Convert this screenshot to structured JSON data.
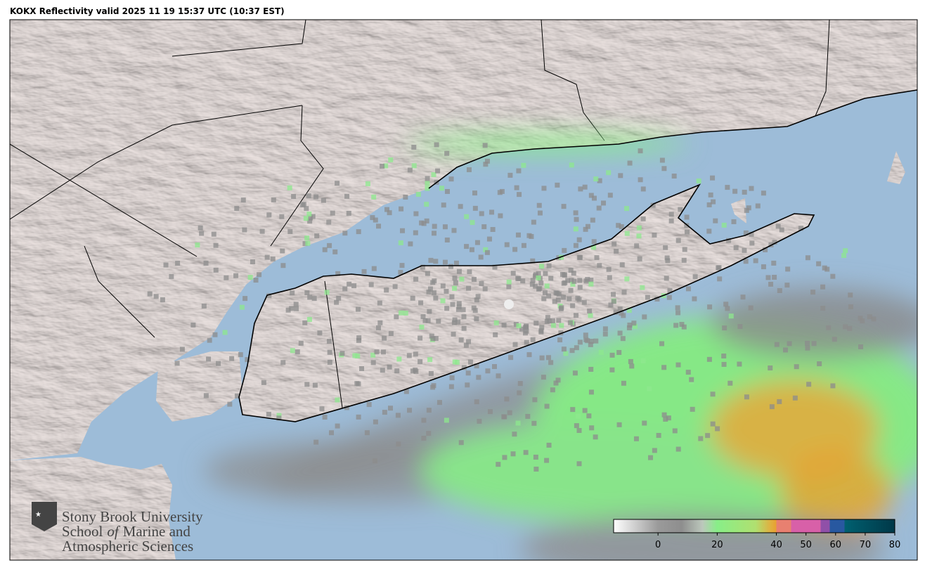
{
  "header": {
    "title": "KOKX Reflectivity valid 2025 11 19 15:37 UTC (10:37 EST)"
  },
  "logo": {
    "university": "Stony Brook University",
    "school": [
      "School",
      "of",
      "Marine and"
    ],
    "department": "Atmospheric Sciences"
  },
  "colorbar": {
    "lim": [
      -15,
      80
    ],
    "ticks": [
      0,
      20,
      40,
      50,
      60,
      70,
      80
    ],
    "stops": [
      {
        "value": -15,
        "color": "#ffffff"
      },
      {
        "value": 0,
        "color": "#9a9a9a"
      },
      {
        "value": 8,
        "color": "#8e8e8e"
      },
      {
        "value": 15,
        "color": "#bcc8bc"
      },
      {
        "value": 20,
        "color": "#88ee88"
      },
      {
        "value": 33,
        "color": "#b0e070"
      },
      {
        "value": 38,
        "color": "#e0b040"
      },
      {
        "value": 40,
        "color": "#e8a030"
      },
      {
        "value": 40,
        "color": "#e88070"
      },
      {
        "value": 45,
        "color": "#e88070"
      },
      {
        "value": 45,
        "color": "#d860a8"
      },
      {
        "value": 55,
        "color": "#d860a8"
      },
      {
        "value": 55,
        "color": "#9050a8"
      },
      {
        "value": 58,
        "color": "#9050a8"
      },
      {
        "value": 58,
        "color": "#2858a0"
      },
      {
        "value": 63,
        "color": "#2858a0"
      },
      {
        "value": 63,
        "color": "#006070"
      },
      {
        "value": 80,
        "color": "#003848"
      }
    ]
  }
}
